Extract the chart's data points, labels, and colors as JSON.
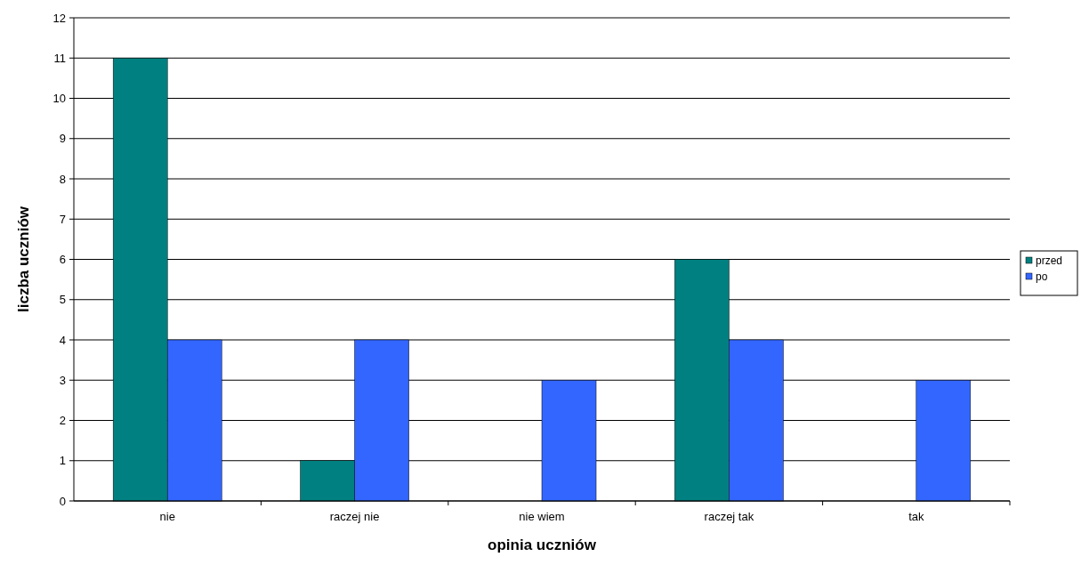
{
  "chart_data": {
    "type": "bar",
    "xlabel": "opinia uczniów",
    "ylabel": "liczba uczniów",
    "categories": [
      "nie",
      "raczej nie",
      "nie wiem",
      "raczej tak",
      "tak"
    ],
    "series": [
      {
        "name": "przed",
        "color": "#008080",
        "values": [
          11,
          1,
          0,
          6,
          0
        ]
      },
      {
        "name": "po",
        "color": "#3366ff",
        "values": [
          4,
          4,
          3,
          4,
          3
        ]
      }
    ],
    "ylim": [
      0,
      12
    ],
    "yticks": [
      0,
      1,
      2,
      3,
      4,
      5,
      6,
      7,
      8,
      9,
      10,
      11,
      12
    ],
    "grid": "y",
    "legend": "right"
  }
}
